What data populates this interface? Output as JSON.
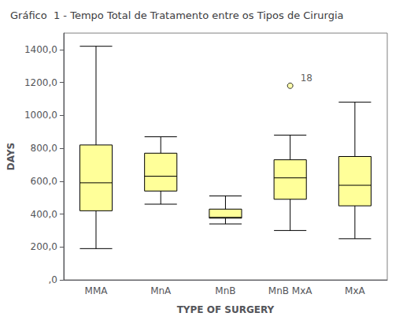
{
  "chart_data": {
    "type": "boxplot",
    "title": "Gráfico  1 - Tempo Total de Tratamento entre os Tipos de Cirurgia",
    "xlabel": "TYPE OF SURGERY",
    "ylabel": "DAYS",
    "categories": [
      "MMA",
      "MnA",
      "MnB",
      "MnB MxA",
      "MxA"
    ],
    "boxes": [
      {
        "whisker_low": 190,
        "q1": 420,
        "median": 590,
        "q3": 820,
        "whisker_high": 1420,
        "outliers": []
      },
      {
        "whisker_low": 460,
        "q1": 540,
        "median": 630,
        "q3": 770,
        "whisker_high": 870,
        "outliers": []
      },
      {
        "whisker_low": 340,
        "q1": 375,
        "median": 380,
        "q3": 430,
        "whisker_high": 510,
        "outliers": []
      },
      {
        "whisker_low": 300,
        "q1": 490,
        "median": 620,
        "q3": 730,
        "whisker_high": 880,
        "outliers": [
          1180
        ]
      },
      {
        "whisker_low": 250,
        "q1": 450,
        "median": 575,
        "q3": 750,
        "whisker_high": 1080,
        "outliers": []
      }
    ],
    "annotations": [
      {
        "text": "18",
        "category": "MnB MxA",
        "value": 1180
      }
    ],
    "color": "#FFFF99",
    "ylim": [
      0,
      1500
    ],
    "yticks": [
      {
        "value": 0,
        "label": ",0"
      },
      {
        "value": 200,
        "label": "200,0"
      },
      {
        "value": 400,
        "label": "400,0"
      },
      {
        "value": 600,
        "label": "600,0"
      },
      {
        "value": 800,
        "label": "800,0"
      },
      {
        "value": 1000,
        "label": "1000,0"
      },
      {
        "value": 1200,
        "label": "1200,0"
      },
      {
        "value": 1400,
        "label": "1400,0"
      }
    ],
    "grid": false
  }
}
